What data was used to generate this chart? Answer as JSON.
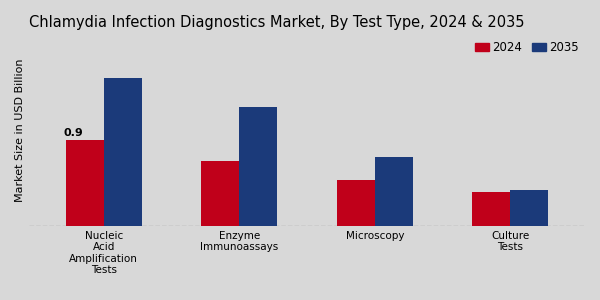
{
  "title": "Chlamydia Infection Diagnostics Market, By Test Type, 2024 & 2035",
  "ylabel": "Market Size in USD Billion",
  "categories": [
    "Nucleic\nAcid\nAmplification\nTests",
    "Enzyme\nImmunoassays",
    "Microscopy",
    "Culture\nTests"
  ],
  "values_2024": [
    0.9,
    0.68,
    0.48,
    0.35
  ],
  "values_2035": [
    1.55,
    1.25,
    0.72,
    0.38
  ],
  "color_2024": "#c0001a",
  "color_2035": "#1b3a7a",
  "label_2024": "2024",
  "label_2035": "2035",
  "annotation_value": "0.9",
  "background_color": "#d8d8d8",
  "bar_width": 0.28,
  "title_fontsize": 10.5,
  "axis_label_fontsize": 8,
  "tick_fontsize": 7.5,
  "legend_fontsize": 8.5,
  "ylim": [
    0,
    2.0
  ]
}
